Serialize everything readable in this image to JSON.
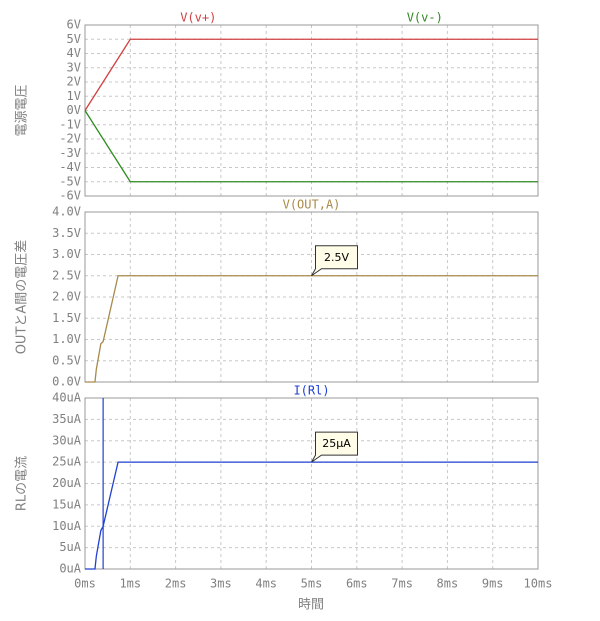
{
  "x_axis": {
    "xlim": [
      0,
      10
    ],
    "xlabel": "時間",
    "xticks": [
      {
        "value": 0,
        "label": "0ms"
      },
      {
        "value": 1,
        "label": "1ms"
      },
      {
        "value": 2,
        "label": "2ms"
      },
      {
        "value": 3,
        "label": "3ms"
      },
      {
        "value": 4,
        "label": "4ms"
      },
      {
        "value": 5,
        "label": "5ms"
      },
      {
        "value": 6,
        "label": "6ms"
      },
      {
        "value": 7,
        "label": "7ms"
      },
      {
        "value": 8,
        "label": "8ms"
      },
      {
        "value": 9,
        "label": "9ms"
      },
      {
        "value": 10,
        "label": "10ms"
      }
    ]
  },
  "chart_data": [
    {
      "type": "line",
      "ylabel": "電源電圧",
      "grid": true,
      "ylim": [
        -6,
        6
      ],
      "yticks": [
        {
          "value": 6,
          "label": "6V"
        },
        {
          "value": 5,
          "label": "5V"
        },
        {
          "value": 4,
          "label": "4V"
        },
        {
          "value": 3,
          "label": "3V"
        },
        {
          "value": 2,
          "label": "2V"
        },
        {
          "value": 1,
          "label": "1V"
        },
        {
          "value": 0,
          "label": "0V"
        },
        {
          "value": -1,
          "label": "-1V"
        },
        {
          "value": -2,
          "label": "-2V"
        },
        {
          "value": -3,
          "label": "-3V"
        },
        {
          "value": -4,
          "label": "-4V"
        },
        {
          "value": -5,
          "label": "-5V"
        },
        {
          "value": -6,
          "label": "-6V"
        }
      ],
      "x": [
        0,
        1,
        10
      ],
      "series": [
        {
          "name": "V(v+)",
          "color": "#d04040",
          "values": [
            0,
            5,
            5
          ]
        },
        {
          "name": "V(v-)",
          "color": "#2e8b20",
          "values": [
            0,
            -5,
            -5
          ]
        }
      ]
    },
    {
      "type": "line",
      "ylabel": "OUTとA間の電圧差",
      "grid": true,
      "ylim": [
        0,
        4
      ],
      "yticks": [
        {
          "value": 0,
          "label": "0.0V"
        },
        {
          "value": 0.5,
          "label": "0.5V"
        },
        {
          "value": 1,
          "label": "1.0V"
        },
        {
          "value": 1.5,
          "label": "1.5V"
        },
        {
          "value": 2,
          "label": "2.0V"
        },
        {
          "value": 2.5,
          "label": "2.5V"
        },
        {
          "value": 3,
          "label": "3.0V"
        },
        {
          "value": 3.5,
          "label": "3.5V"
        },
        {
          "value": 4,
          "label": "4.0V"
        }
      ],
      "x": [
        0,
        0.22,
        0.25,
        0.35,
        0.4,
        0.73,
        10
      ],
      "series": [
        {
          "name": "V(OUT,A)",
          "color": "#a88a4a",
          "values": [
            0,
            0,
            0.3,
            0.9,
            0.95,
            2.5,
            2.5
          ]
        }
      ],
      "annotations": [
        {
          "text": "2.5V",
          "x": 5,
          "y": 2.5
        }
      ]
    },
    {
      "type": "line",
      "ylabel": "RLの電流",
      "grid": true,
      "ylim": [
        0,
        40
      ],
      "yticks": [
        {
          "value": 0,
          "label": "0uA"
        },
        {
          "value": 5,
          "label": "5uA"
        },
        {
          "value": 10,
          "label": "10uA"
        },
        {
          "value": 15,
          "label": "15uA"
        },
        {
          "value": 20,
          "label": "20uA"
        },
        {
          "value": 25,
          "label": "25uA"
        },
        {
          "value": 30,
          "label": "30uA"
        },
        {
          "value": 35,
          "label": "35uA"
        },
        {
          "value": 40,
          "label": "40uA"
        }
      ],
      "x": [
        0,
        0.22,
        0.25,
        0.35,
        0.4,
        0.73,
        10
      ],
      "series": [
        {
          "name": "I(Rl)",
          "color": "#2040d0",
          "values": [
            0,
            0,
            3,
            9,
            10,
            25,
            25
          ]
        }
      ],
      "cursor_x": 0.4,
      "annotations": [
        {
          "text": "25μA",
          "x": 5,
          "y": 25
        }
      ]
    }
  ]
}
